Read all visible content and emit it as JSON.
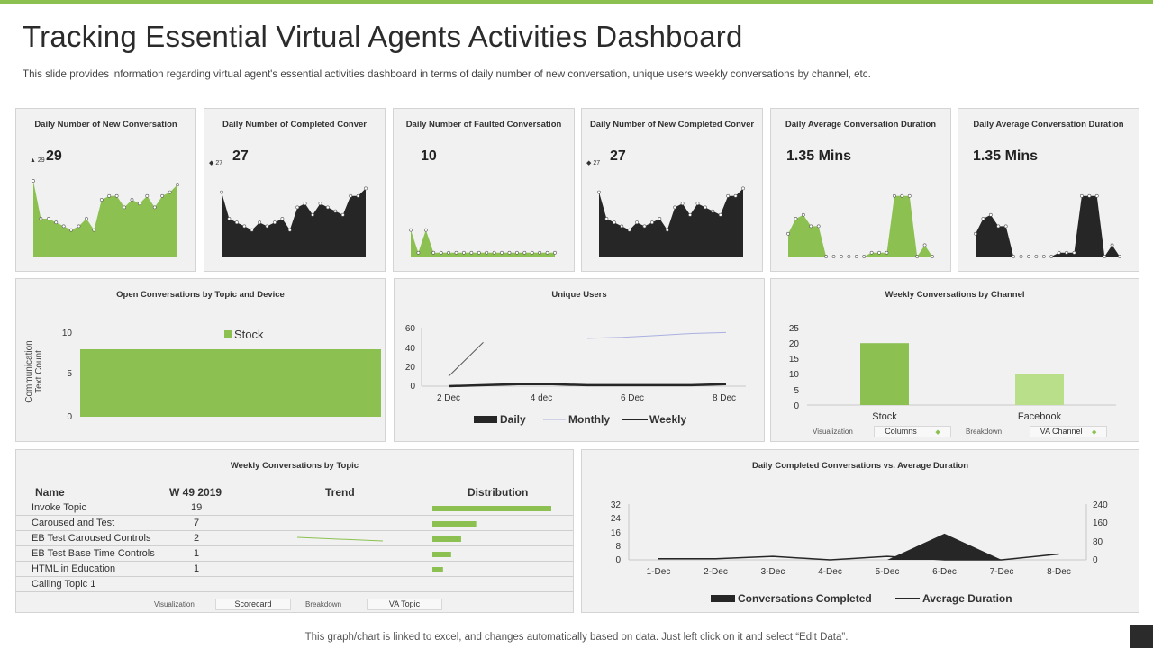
{
  "header": {
    "title": "Tracking Essential Virtual Agents Activities Dashboard",
    "subtitle": "This slide provides information regarding virtual agent's essential activities dashboard in terms of daily number of new conversation, unique users weekly conversations by channel, etc."
  },
  "kpis": [
    {
      "title": "Daily Number of New Conversation",
      "value": "29",
      "small": "29"
    },
    {
      "title": "Daily Number of Completed Conver",
      "value": "27",
      "small": "27"
    },
    {
      "title": "Daily Number of Faulted Conversation",
      "value": "10",
      "small": ""
    },
    {
      "title": "Daily Number of New Completed Conver",
      "value": "27",
      "small": "27"
    },
    {
      "title": "Daily Average Conversation Duration",
      "value": "1.35 Mins",
      "small": ""
    },
    {
      "title": "Daily Average Conversation Duration",
      "value": "1.35 Mins",
      "small": ""
    }
  ],
  "colors": {
    "accent": "#8cc152",
    "dark": "#262626",
    "panel": "#f1f1f1",
    "light_green": "#b9df8a"
  },
  "chart_data": [
    {
      "type": "area",
      "title": "Daily Number of New Conversation",
      "values": [
        20,
        10,
        10,
        9,
        8,
        7,
        8,
        10,
        7,
        15,
        16,
        16,
        13,
        15,
        14,
        16,
        13,
        16,
        17,
        19
      ]
    },
    {
      "type": "area",
      "title": "Daily Number of Completed Conver",
      "values": [
        17,
        10,
        9,
        8,
        7,
        9,
        8,
        9,
        10,
        7,
        13,
        14,
        11,
        14,
        13,
        12,
        11,
        16,
        16,
        18
      ]
    },
    {
      "type": "area",
      "title": "Daily Number of Faulted Conversation",
      "values": [
        7,
        1,
        7,
        1,
        1,
        1,
        1,
        1,
        1,
        1,
        1,
        1,
        1,
        1,
        1,
        1,
        1,
        1,
        1,
        1
      ]
    },
    {
      "type": "area",
      "title": "Daily Number of New Completed Conver",
      "values": [
        17,
        10,
        9,
        8,
        7,
        9,
        8,
        9,
        10,
        7,
        13,
        14,
        11,
        14,
        13,
        12,
        11,
        16,
        16,
        18
      ]
    },
    {
      "type": "area",
      "title": "Daily Average Conversation Duration",
      "values": [
        6,
        10,
        11,
        8,
        8,
        0,
        0,
        0,
        0,
        0,
        0,
        1,
        1,
        1,
        16,
        16,
        16,
        0,
        3,
        0
      ]
    },
    {
      "type": "area",
      "title": "Daily Average Conversation Duration",
      "values": [
        6,
        10,
        11,
        8,
        8,
        0,
        0,
        0,
        0,
        0,
        0,
        1,
        1,
        1,
        16,
        16,
        16,
        0,
        3,
        0
      ]
    },
    {
      "type": "bar",
      "title": "Open Conversations by Topic and Device",
      "ylabel": "Communication Text Count",
      "ylim": [
        0,
        10
      ],
      "yticks": [
        "0",
        "5",
        "10"
      ],
      "series": [
        {
          "name": "Stock",
          "values": [
            8
          ]
        }
      ]
    },
    {
      "type": "line",
      "title": "Unique Users",
      "ylim": [
        0,
        60
      ],
      "yticks": [
        "0",
        "20",
        "40",
        "60"
      ],
      "xticks": [
        "2 Dec",
        "4 dec",
        "6 Dec",
        "8 Dec"
      ],
      "series": [
        {
          "name": "Daily",
          "values": [
            0,
            1,
            2,
            2,
            1,
            1,
            1,
            1,
            2
          ]
        },
        {
          "name": "Monthly",
          "values": [
            null,
            null,
            null,
            null,
            49,
            50,
            52,
            54,
            55
          ]
        },
        {
          "name": "Weekly",
          "values": [
            10,
            45,
            null,
            null,
            null,
            null,
            null,
            null,
            null
          ]
        }
      ]
    },
    {
      "type": "bar",
      "title": "Weekly Conversations by Channel",
      "categories": [
        "Stock",
        "Facebook"
      ],
      "values": [
        20,
        10
      ],
      "ylim": [
        0,
        25
      ],
      "yticks": [
        "0",
        "5",
        "10",
        "15",
        "20",
        "25"
      ]
    },
    {
      "type": "line",
      "title": "Daily Completed Conversations vs. Average Duration",
      "categories": [
        "1-Dec",
        "2-Dec",
        "3-Dec",
        "4-Dec",
        "5-Dec",
        "6-Dec",
        "7-Dec",
        "8-Dec"
      ],
      "series": [
        {
          "name": "Conversations Completed",
          "values": [
            0,
            0,
            0,
            0,
            0,
            15,
            0,
            0
          ]
        },
        {
          "name": "Average Duration",
          "values": [
            5,
            5,
            15,
            0,
            15,
            0,
            0,
            25
          ]
        }
      ],
      "ylim": [
        0,
        32
      ],
      "y2lim": [
        0,
        240
      ],
      "yticks": [
        "0",
        "8",
        "16",
        "24",
        "32"
      ],
      "y2ticks": [
        "0",
        "80",
        "160",
        "240"
      ]
    }
  ],
  "panels": {
    "open_conv": {
      "title": "Open Conversations by Topic and Device",
      "ylabel_line1": "Communication",
      "ylabel_line2": "Text Count",
      "legend": "Stock"
    },
    "unique_users": {
      "title": "Unique Users",
      "legend": [
        "Daily",
        "Monthly",
        "Weekly"
      ]
    },
    "channel": {
      "title": "Weekly Conversations by Channel",
      "visualization_label": "Visualization",
      "visualization_value": "Columns",
      "breakdown_label": "Breakdown",
      "breakdown_value": "VA Channel"
    },
    "topic": {
      "title": "Weekly Conversations by Topic",
      "columns": [
        "Name",
        "W 49 2019",
        "Trend",
        "Distribution"
      ],
      "rows": [
        {
          "name": "Invoke Topic",
          "value": "19",
          "dist": 19
        },
        {
          "name": "Caroused and Test",
          "value": "7",
          "dist": 7
        },
        {
          "name": "EB Test Caroused Controls",
          "value": "2",
          "dist": 4.6
        },
        {
          "name": "EB Test Base Time Controls",
          "value": "1",
          "dist": 3
        },
        {
          "name": "HTML in Education",
          "value": "1",
          "dist": 1.7
        },
        {
          "name": "Calling Topic 1",
          "value": "",
          "dist": 0
        }
      ],
      "visualization_label": "Visualization",
      "visualization_value": "Scorecard",
      "breakdown_label": "Breakdown",
      "breakdown_value": "VA Topic"
    },
    "completed": {
      "title": "Daily Completed Conversations vs. Average Duration",
      "legend": [
        "Conversations Completed",
        "Average Duration"
      ]
    }
  },
  "footer": {
    "text": "This graph/chart is linked to excel,  and changes automatically based on data. Just left click on it and select “Edit Data”."
  }
}
